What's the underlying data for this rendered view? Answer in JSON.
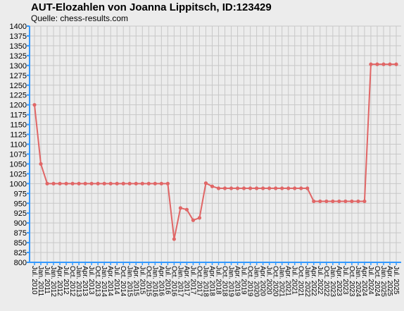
{
  "chart_data": {
    "type": "line",
    "title": "AUT-Elozahlen von Joanna Lippitsch, ID:123429",
    "subtitle": "Quelle: chess-results.com",
    "categories": [
      "Jul. 2010",
      "Jan. 2011",
      "Jul. 2011",
      "Jan. 2012",
      "Apr. 2012",
      "Jul. 2012",
      "Oct. 2012",
      "Jan. 2013",
      "Apr. 2013",
      "Jul. 2013",
      "Oct. 2013",
      "Jan. 2014",
      "Apr. 2014",
      "Jul. 2014",
      "Oct. 2014",
      "Jan. 2015",
      "Apr. 2015",
      "Jul. 2015",
      "Oct. 2015",
      "Jan. 2016",
      "Apr. 2016",
      "Jul. 2016",
      "Oct. 2016",
      "Jan. 2017",
      "Apr. 2017",
      "Jul. 2017",
      "Oct. 2017",
      "Jan. 2018",
      "Apr. 2018",
      "Jul. 2018",
      "Oct. 2018",
      "Jan. 2019",
      "Apr. 2019",
      "Jul. 2019",
      "Oct. 2019",
      "Jan. 2020",
      "Apr. 2020",
      "Jul. 2020",
      "Oct. 2020",
      "Jan. 2021",
      "Apr. 2021",
      "Jul. 2021",
      "Oct. 2021",
      "Jan. 2022",
      "Apr. 2022",
      "Jul. 2022",
      "Oct. 2022",
      "Jan. 2023",
      "Apr. 2023",
      "Jul. 2023",
      "Oct. 2023",
      "Jan. 2024",
      "Apr. 2024",
      "Jul. 2024",
      "Oct. 2024",
      "Jan. 2025",
      "Apr. 2025",
      "Jul. 2025"
    ],
    "values": [
      1200,
      1050,
      1000,
      1000,
      1000,
      1000,
      1000,
      1000,
      1000,
      1000,
      1000,
      1000,
      1000,
      1000,
      1000,
      1000,
      1000,
      1000,
      1000,
      1000,
      1000,
      1000,
      859,
      938,
      934,
      907,
      913,
      1001,
      993,
      988,
      988,
      988,
      988,
      988,
      988,
      988,
      988,
      988,
      988,
      988,
      988,
      988,
      988,
      988,
      955,
      955,
      955,
      955,
      955,
      955,
      955,
      955,
      955,
      1303,
      1303,
      1303,
      1303,
      1303
    ],
    "color": "#e06666",
    "ylim": [
      800,
      1400
    ],
    "yticks": [
      800,
      825,
      850,
      875,
      900,
      925,
      950,
      975,
      1000,
      1025,
      1050,
      1075,
      1100,
      1125,
      1150,
      1175,
      1200,
      1225,
      1250,
      1275,
      1300,
      1325,
      1350,
      1375,
      1400
    ],
    "grid": true
  }
}
